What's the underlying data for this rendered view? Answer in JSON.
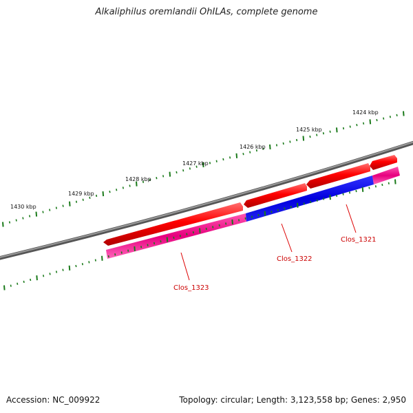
{
  "title": "Alkaliphilus oremlandii OhILAs, complete genome",
  "footer": {
    "accession": "Accession: NC_009922",
    "summary": "Topology: circular; Length: 3,123,558 bp; Genes: 2,950"
  },
  "scale": {
    "unit": "kbp",
    "labels": [
      "1424 kbp",
      "1425 kbp",
      "1426 kbp",
      "1427 kbp",
      "1428 kbp",
      "1429 kbp",
      "1430 kbp"
    ]
  },
  "genes": [
    {
      "name": "Clos_1321",
      "color": "#ff0000"
    },
    {
      "name": "Clos_1322",
      "color": "#ff0000"
    },
    {
      "name": "Clos_1323",
      "color": "#ff0000"
    }
  ],
  "colors": {
    "backbone": "#777777",
    "tick": "#1a7a1a",
    "forward_gene": "#ff0000",
    "cds_pink": "#e6007e",
    "cds_blue": "#0000dd",
    "label": "#cc0000"
  }
}
